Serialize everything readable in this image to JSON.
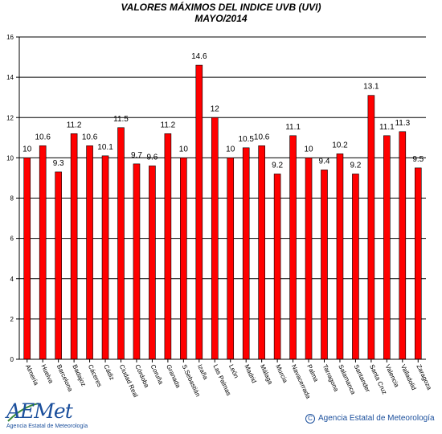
{
  "chart_data": {
    "type": "bar",
    "title": "VALORES MÁXIMOS DEL INDICE UVB (UVI)",
    "subtitle": "MAYO/2014",
    "categories": [
      "Almería",
      "Huelva",
      "Barcelona",
      "Badajoz",
      "Cáceres",
      "Cádiz",
      "Ciudad Real",
      "Córdoba",
      "Coruña",
      "Granada",
      "S.Sebastián",
      "Izaña",
      "Las Palmas",
      "León",
      "Madrid",
      "Málaga",
      "Murcia",
      "Navacerrada",
      "Palma",
      "Tarragona",
      "Salamanca",
      "Santander",
      "Santa Cruz",
      "Valencia",
      "Valladolid",
      "Zaragoza"
    ],
    "values": [
      10,
      10.6,
      9.3,
      11.2,
      10.6,
      10.1,
      11.5,
      9.7,
      9.6,
      11.2,
      10,
      14.6,
      12,
      10,
      10.5,
      10.6,
      9.2,
      11.1,
      10,
      9.4,
      10.2,
      9.2,
      13.1,
      11.1,
      11.3,
      9.5
    ],
    "ylim": [
      0,
      16
    ],
    "yticks": [
      0,
      2,
      4,
      6,
      8,
      10,
      12,
      14,
      16
    ],
    "grid": true,
    "bar_color": "#ff0000"
  },
  "footer": {
    "logo_text": "AEMet",
    "logo_subtext": "Agencia Estatal de Meteorología",
    "copyright_symbol": "C",
    "copyright_text": "Agencia Estatal de Meteorología"
  }
}
